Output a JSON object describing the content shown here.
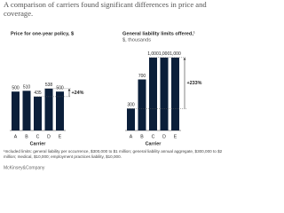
{
  "title": "A comparison of carriers found significant differences in price and coverage.",
  "chart_data": [
    {
      "type": "bar",
      "title": "Price for one-year policy, $",
      "x_label": "Carrier",
      "categories": [
        "A",
        "B",
        "C",
        "D",
        "E"
      ],
      "values": [
        500,
        510,
        435,
        538,
        500
      ],
      "color": "#0b1f3a",
      "ylim": [
        0,
        1050
      ],
      "annotation": "+24%"
    },
    {
      "type": "bar",
      "title": "General liability limits offered,¹",
      "subtitle": "$, thousands",
      "x_label": "Carrier",
      "categories": [
        "A",
        "B",
        "C",
        "D",
        "E"
      ],
      "values": [
        300,
        700,
        1000,
        1000,
        1000
      ],
      "value_labels": [
        "300",
        "700",
        "1,000",
        "1,000",
        "1,000"
      ],
      "color": "#0b1f3a",
      "ylim": [
        0,
        1120
      ],
      "annotation": "+233%"
    }
  ],
  "footnote": "¹Included limits: general liability per occurrence, $300,000 to $1 million; general liability annual aggregate, $300,000 to $2 million; medical, $10,000; employment practices liability, $10,000.",
  "source": "McKinsey&Company"
}
